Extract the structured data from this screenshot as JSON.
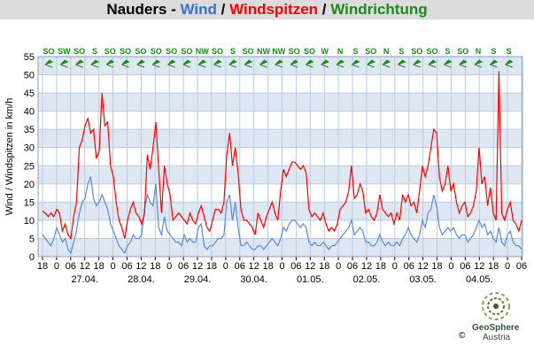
{
  "header": {
    "location": "Nauders",
    "sep1": " - ",
    "wind": "Wind",
    "sep2": " / ",
    "gusts": "Windspitzen",
    "sep3": " / ",
    "direction": "Windrichtung",
    "colors": {
      "location": "#000000",
      "wind": "#3a6fd8",
      "gusts": "#ff0000",
      "direction": "#1a8a1a"
    }
  },
  "brand": {
    "name": "GeoSphere",
    "sub": "Austria",
    "copyright": "©"
  },
  "chart_data": {
    "type": "line",
    "ylabel": "Wind / Windspitzen in km/h",
    "ylim": [
      0,
      55
    ],
    "yticks": [
      0,
      5,
      10,
      15,
      20,
      25,
      30,
      35,
      40,
      45,
      50,
      55
    ],
    "grid": true,
    "x_hour_ticks": [
      "18",
      "0",
      "06",
      "12",
      "18",
      "0",
      "06",
      "12",
      "18",
      "0",
      "06",
      "12",
      "18",
      "0",
      "06",
      "12",
      "18",
      "0",
      "06",
      "12",
      "18",
      "0",
      "06",
      "12",
      "18",
      "0",
      "06",
      "12",
      "18",
      "0",
      "06",
      "12",
      "18",
      "0",
      "06"
    ],
    "x_date_labels": [
      "27.04.",
      "28.04.",
      "29.04.",
      "30.04.",
      "01.05.",
      "02.05.",
      "03.05.",
      "04.05."
    ],
    "directions": [
      "SO",
      "SW",
      "SO",
      "S",
      "SO",
      "SO",
      "SO",
      "SO",
      "SO",
      "SO",
      "NW",
      "SO",
      "S",
      "SO",
      "NW",
      "NW",
      "SO",
      "SO",
      "W",
      "N",
      "S",
      "SO",
      "N",
      "S",
      "SO",
      "SO",
      "S",
      "SO",
      "N",
      "S",
      "S"
    ],
    "series": [
      {
        "name": "Windspitzen",
        "color": "#ff0000",
        "values": [
          12.5,
          12,
          11,
          12,
          11,
          13,
          12,
          7,
          9,
          6,
          5,
          11,
          15,
          30,
          32,
          36,
          38,
          34,
          35,
          27,
          29,
          45,
          36,
          37,
          25,
          22,
          15,
          10,
          8,
          5,
          10,
          13,
          15,
          12,
          11,
          9,
          12,
          28,
          24,
          30,
          37,
          24,
          12,
          25,
          20,
          17,
          10,
          11,
          12,
          11,
          10,
          9,
          12,
          10,
          9,
          12,
          14,
          11,
          8,
          7,
          10,
          13,
          13,
          12,
          15,
          28,
          34,
          25,
          30,
          23,
          13,
          10,
          10,
          9,
          8,
          6,
          12,
          10,
          8,
          11,
          13,
          15,
          12,
          10,
          18,
          24,
          22,
          24,
          26,
          26,
          25,
          24,
          25,
          23,
          13,
          11,
          12,
          11,
          10,
          12,
          9,
          7,
          8,
          7,
          9,
          13,
          14,
          15,
          18,
          25,
          16,
          17,
          20,
          18,
          12,
          13,
          11,
          10,
          12,
          17,
          13,
          12,
          11,
          12,
          9,
          12,
          10,
          17,
          15,
          17,
          14,
          15,
          12,
          18,
          25,
          22,
          25,
          30,
          35,
          34,
          22,
          18,
          20,
          25,
          18,
          20,
          15,
          12,
          14,
          15,
          11,
          12,
          14,
          18,
          30,
          20,
          22,
          14,
          19,
          12,
          10,
          51,
          12,
          10,
          13,
          15,
          10,
          9,
          7,
          10
        ]
      },
      {
        "name": "Wind",
        "color": "#5a8ae0",
        "values": [
          6,
          5,
          4,
          3,
          5,
          8,
          6,
          4,
          5,
          2,
          1,
          4,
          7,
          12,
          15,
          16,
          20,
          22,
          16,
          14,
          15,
          17,
          15,
          13,
          9,
          7,
          5,
          3,
          2,
          1,
          3,
          4,
          6,
          5,
          5,
          6,
          13,
          17,
          15,
          14,
          20,
          8,
          6,
          11,
          7,
          6,
          5,
          4,
          4,
          3,
          6,
          4,
          5,
          4,
          4,
          8,
          9,
          3,
          2,
          3,
          3,
          4,
          5,
          5,
          6,
          15,
          17,
          10,
          15,
          8,
          3,
          3,
          4,
          3,
          2,
          2,
          3,
          3,
          2,
          3,
          4,
          5,
          4,
          3,
          5,
          8,
          7,
          9,
          10,
          10,
          9,
          8,
          9,
          8,
          4,
          3,
          4,
          3,
          3,
          4,
          3,
          2,
          3,
          3,
          4,
          5,
          6,
          7,
          8,
          10,
          6,
          7,
          8,
          7,
          4,
          4,
          3,
          3,
          4,
          6,
          4,
          3,
          4,
          3,
          3,
          4,
          3,
          5,
          6,
          8,
          6,
          5,
          4,
          6,
          10,
          8,
          12,
          13,
          17,
          14,
          8,
          6,
          7,
          8,
          7,
          8,
          6,
          5,
          6,
          6,
          4,
          5,
          6,
          8,
          10,
          8,
          9,
          6,
          7,
          5,
          4,
          8,
          4,
          3,
          6,
          7,
          4,
          3,
          3,
          2
        ]
      }
    ]
  }
}
